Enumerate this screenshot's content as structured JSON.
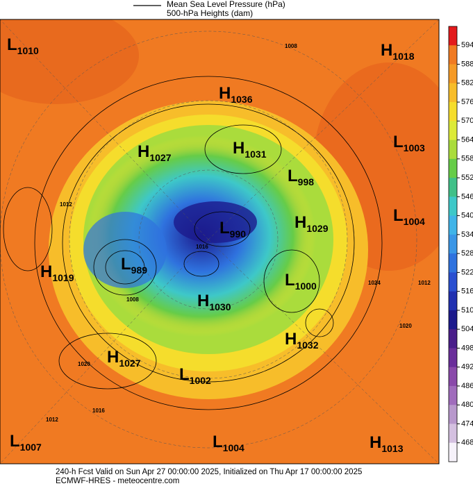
{
  "legend": {
    "lines": [
      "Mean Sea Level Pressure (hPa)",
      "500-hPa Heights (dam)"
    ]
  },
  "colorbar": {
    "ticks": [
      594,
      588,
      582,
      576,
      570,
      564,
      558,
      552,
      546,
      540,
      534,
      528,
      522,
      516,
      510,
      504,
      498,
      492,
      486,
      480,
      474,
      468
    ],
    "colors": [
      "#e31a1c",
      "#f07a22",
      "#f59a26",
      "#f7bd2a",
      "#f5dd2c",
      "#dcea38",
      "#aadc3c",
      "#66cc48",
      "#40c088",
      "#3ec8c8",
      "#40b4e8",
      "#3a96e6",
      "#2f72de",
      "#2a4fd0",
      "#2030b0",
      "#1c1a8c",
      "#4a1e8a",
      "#6a2e9a",
      "#8a4aaa",
      "#a06cbc",
      "#b898cc",
      "#d4c0e0",
      "#f6f2fa"
    ]
  },
  "systems": [
    {
      "type": "L",
      "value": "1010"
    },
    {
      "type": "H",
      "value": "1018"
    },
    {
      "type": "H",
      "value": "1036"
    },
    {
      "type": "H",
      "value": "1027"
    },
    {
      "type": "H",
      "value": "1031"
    },
    {
      "type": "L",
      "value": "1003"
    },
    {
      "type": "L",
      "value": "998"
    },
    {
      "type": "L",
      "value": "1004"
    },
    {
      "type": "H",
      "value": "1029"
    },
    {
      "type": "L",
      "value": "990"
    },
    {
      "type": "L",
      "value": "989"
    },
    {
      "type": "H",
      "value": "1019"
    },
    {
      "type": "L",
      "value": "1000"
    },
    {
      "type": "H",
      "value": "1030"
    },
    {
      "type": "H",
      "value": "1032"
    },
    {
      "type": "H",
      "value": "1027"
    },
    {
      "type": "L",
      "value": "1002"
    },
    {
      "type": "L",
      "value": "1007"
    },
    {
      "type": "L",
      "value": "1004"
    },
    {
      "type": "H",
      "value": "1013"
    }
  ],
  "contour_labels": [
    "1008",
    "1012",
    "1016",
    "1024",
    "1020",
    "1012",
    "1016",
    "1012",
    "1020",
    "1008"
  ],
  "footer": {
    "lines": [
      "240-h Fcst Valid on Sun Apr 27 00:00:00 2025, Initialized on Thu Apr 17 00:00:00 2025",
      "ECMWF-HRES  - meteocentre.com"
    ]
  }
}
